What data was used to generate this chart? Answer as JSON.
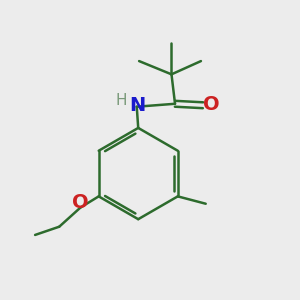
{
  "bg_color": "#ececec",
  "bond_color": "#2d6b2d",
  "bond_width": 1.8,
  "atom_colors": {
    "N": "#1a1acc",
    "O_amide": "#cc2222",
    "O_ether": "#cc2222",
    "H": "#7a9a7a"
  },
  "font_size_N": 14,
  "font_size_H": 11,
  "font_size_O": 14
}
